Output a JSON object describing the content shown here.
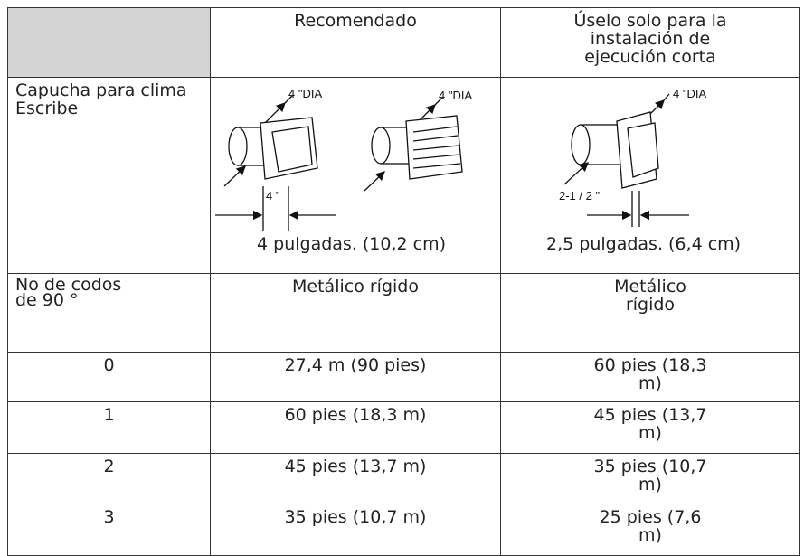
{
  "table": {
    "columns": [
      "Recomendado",
      "Úselo solo para la instalación de ejecución corta"
    ],
    "hood_row": {
      "label": "Capucha para clima Escribe",
      "recommended": {
        "dia_labels": [
          "4 \"DIA",
          "4 \"DIA"
        ],
        "width_label": "4 \"",
        "size": "4 pulgadas. (10,2 cm)"
      },
      "short_run": {
        "dia_label": "4 \"DIA",
        "width_label": "2-1 / 2 \"",
        "size": "2,5 pulgadas. (6,4 cm)"
      }
    },
    "material_row": [
      "No de codos de 90 °",
      "Metálico rígido",
      "Metálico rígido"
    ],
    "rows": [
      [
        "0",
        "27,4 m (90 pies)",
        "60 pies (18,3 m)"
      ],
      [
        "1",
        "60 pies (18,3 m)",
        "45 pies (13,7 m)"
      ],
      [
        "2",
        "45 pies (13,7 m)",
        "35 pies (10,7 m)"
      ],
      [
        "3",
        "35 pies (10,7 m)",
        "25 pies (7,6 m)"
      ]
    ]
  }
}
